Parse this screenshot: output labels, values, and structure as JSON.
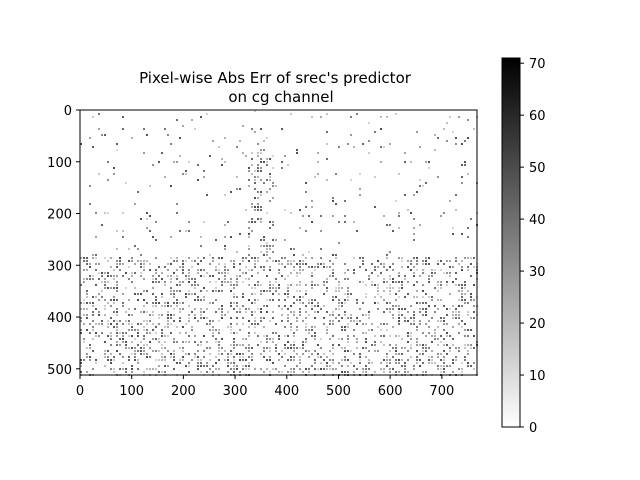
{
  "chart_data": {
    "type": "heatmap",
    "title": "Pixel-wise Abs Err of srec's predictor",
    "subtitle": "on cg channel",
    "image_width": 768,
    "image_height": 512,
    "xlim": [
      0,
      768
    ],
    "ylim": [
      512,
      0
    ],
    "x_ticks": [
      0,
      100,
      200,
      300,
      400,
      500,
      600,
      700
    ],
    "y_ticks": [
      0,
      100,
      200,
      300,
      400,
      500
    ],
    "colormap": "gray_r",
    "colorbar": {
      "min": 0,
      "max": 71,
      "ticks": [
        0,
        10,
        20,
        30,
        40,
        50,
        60,
        70
      ],
      "color_low": "#ffffff",
      "color_high": "#000000"
    },
    "grid": false,
    "description_regions": [
      {
        "kind": "tower",
        "x": [
          320,
          375
        ],
        "y": [
          75,
          290
        ],
        "level": 0.28
      },
      {
        "kind": "buildings",
        "x": [
          0,
          768
        ],
        "y": [
          280,
          512
        ],
        "level": 0.32
      },
      {
        "kind": "sky",
        "x": [
          0,
          768
        ],
        "y": [
          0,
          280
        ],
        "level": 0.04
      }
    ]
  }
}
